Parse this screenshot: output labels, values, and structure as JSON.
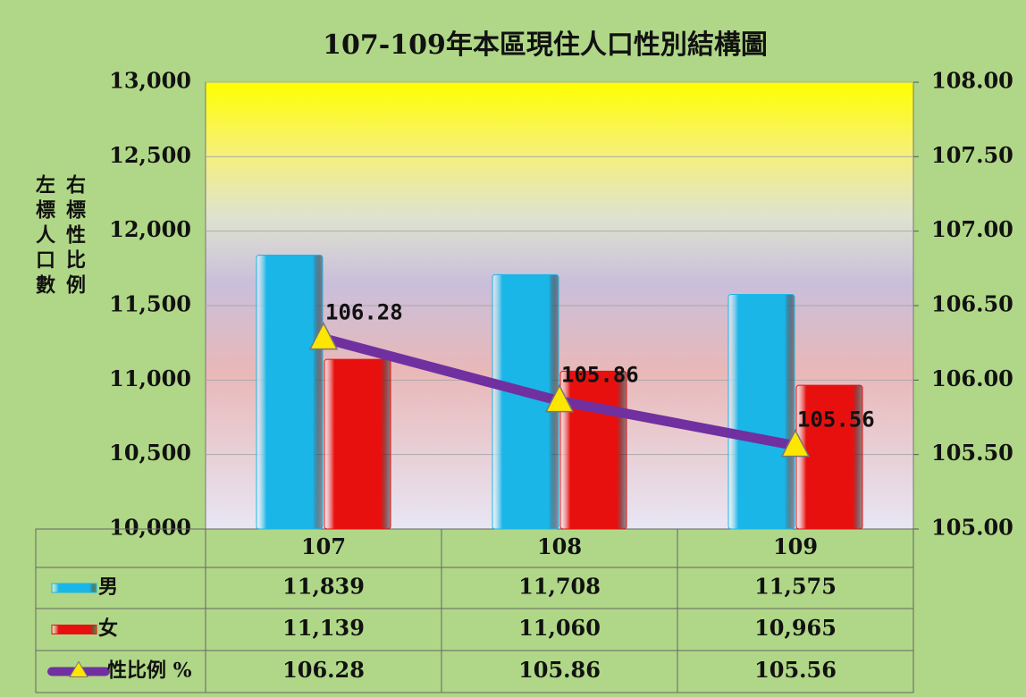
{
  "chart_data": {
    "type": "bar_line",
    "title": "107-109年本區現住人口性別結構圖",
    "y_label": "左標人口數",
    "y2_label": "右標性比例",
    "categories": [
      "107",
      "108",
      "109"
    ],
    "series": [
      {
        "name": "男",
        "type": "bar",
        "color": "#1ab6e8",
        "values": [
          11839,
          11708,
          11575
        ],
        "value_labels": [
          "11,839",
          "11,708",
          "11,575"
        ]
      },
      {
        "name": "女",
        "type": "bar",
        "color": "#e8100f",
        "values": [
          11139,
          11060,
          10965
        ],
        "value_labels": [
          "11,139",
          "11,060",
          "10,965"
        ]
      },
      {
        "name": "性比例 %",
        "type": "line",
        "axis": "y2",
        "color": "#7030a0",
        "marker_color": "#ffe600",
        "values": [
          106.28,
          105.86,
          105.56
        ]
      }
    ],
    "ylim": [
      10000,
      13000
    ],
    "yticks": [
      {
        "value": 10000,
        "label": "10,000"
      },
      {
        "value": 10500,
        "label": "10,500"
      },
      {
        "value": 11000,
        "label": "11,000"
      },
      {
        "value": 11500,
        "label": "11,500"
      },
      {
        "value": 12000,
        "label": "12,000"
      },
      {
        "value": 12500,
        "label": "12,500"
      },
      {
        "value": 13000,
        "label": "13,000"
      }
    ],
    "y2lim": [
      105,
      108
    ],
    "y2ticks": [
      {
        "value": 105,
        "label": "105.00"
      },
      {
        "value": 105.5,
        "label": "105.50"
      },
      {
        "value": 106,
        "label": "106.00"
      },
      {
        "value": 106.5,
        "label": "106.50"
      },
      {
        "value": 107,
        "label": "107.00"
      },
      {
        "value": 107.5,
        "label": "107.50"
      },
      {
        "value": 108,
        "label": "108.00"
      }
    ],
    "grid": true
  }
}
